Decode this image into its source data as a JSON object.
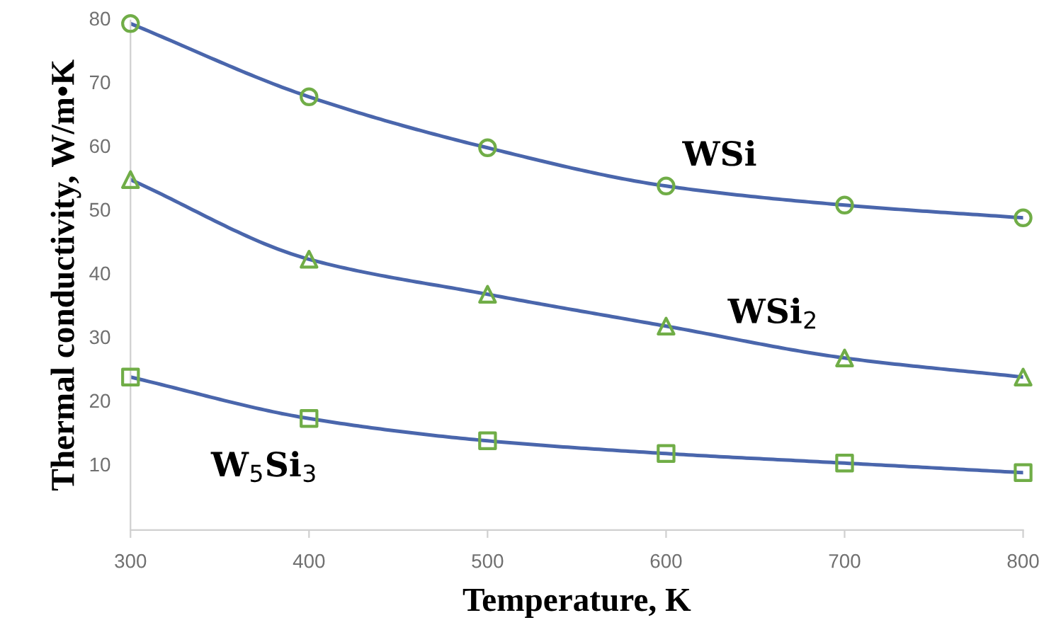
{
  "chart_data": {
    "type": "line",
    "xlabel": "Temperature, K",
    "ylabel": "Thermal conductivity, W/m•K",
    "x": [
      300,
      400,
      500,
      600,
      700,
      800
    ],
    "xlim": [
      300,
      800
    ],
    "xticks": [
      300,
      400,
      500,
      600,
      700,
      800
    ],
    "ylim": [
      0,
      80
    ],
    "yticks": [
      10,
      20,
      30,
      40,
      50,
      60,
      70,
      80
    ],
    "grid": false,
    "legend": false,
    "line_style": "solid",
    "series": [
      {
        "name": "WSi",
        "color": "#70ad47",
        "marker": "circle",
        "values": [
          79.5,
          68,
          60,
          54,
          51,
          49
        ]
      },
      {
        "name": "WSi$_{2}$",
        "color": "#70ad47",
        "marker": "triangle",
        "values": [
          55,
          42.5,
          37,
          32,
          27,
          24
        ]
      },
      {
        "name": "W$_{5}$Si$_{3}$",
        "color": "#70ad47",
        "marker": "square",
        "values": [
          24,
          17.5,
          14,
          12,
          10.5,
          9
        ]
      }
    ]
  }
}
